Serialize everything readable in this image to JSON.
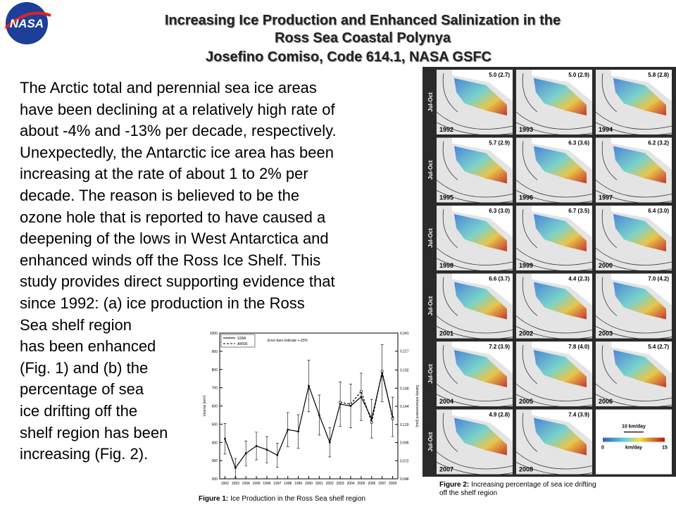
{
  "logo": "NASA",
  "header": {
    "title_lines": [
      "Increasing Ice Production and Enhanced Salinization in the",
      "Ross Sea Coastal Polynya"
    ],
    "author": "Josefino Comiso, Code 614.1, NASA GSFC"
  },
  "body_lines": [
    "The Arctic total and perennial sea ice  areas",
    "have been declining at a relatively high rate of",
    "about -4% and -13% per decade, respectively.",
    "Unexpectedly, the Antarctic ice area has been",
    "increasing at the rate of about 1 to 2% per",
    "decade.  The reason is believed to be the",
    "ozone hole that is reported to have caused a",
    "deepening of the lows in West Antarctica and",
    "enhanced winds off the Ross Ice Shelf.  This",
    "study provides direct supporting evidence that",
    "since 1992: (a) ice production in the Ross",
    "Sea shelf region",
    "has been enhanced",
    "(Fig. 1) and (b) the",
    "percentage of sea",
    "ice drifting off the",
    "shelf region has been",
    "increasing (Fig. 2)."
  ],
  "chart_data": {
    "type": "line",
    "annotation": "Error bars indicate +-20%",
    "y_label": "Volume (km³)",
    "y2_label": "Salinity enhancement (psu)",
    "x": [
      1992,
      1993,
      1994,
      1995,
      1996,
      1997,
      1998,
      1999,
      2000,
      2001,
      2002,
      2003,
      2004,
      2005,
      2006,
      2007,
      2008
    ],
    "xlim": [
      1991.5,
      2008.5
    ],
    "xticks": [
      1992,
      1993,
      1994,
      1995,
      1996,
      1997,
      1998,
      1999,
      2000,
      2001,
      2002,
      2003,
      2004,
      2005,
      2006,
      2007,
      2008
    ],
    "ylim": [
      200,
      1000
    ],
    "yticks": [
      200,
      300,
      400,
      500,
      600,
      700,
      800,
      900,
      1000
    ],
    "y2lim": [
      0.048,
      0.241
    ],
    "y2ticks": [
      0.048,
      0.072,
      0.096,
      {
        "value": 0.12,
        "label": "0.120"
      },
      0.144,
      0.168,
      0.192,
      0.217,
      0.241
    ],
    "series": [
      {
        "name": "SSMI",
        "color": "#000000",
        "dash": false,
        "values": [
          420,
          260,
          340,
          380,
          360,
          330,
          470,
          460,
          710,
          550,
          400,
          610,
          600,
          650,
          530,
          780,
          540
        ],
        "errors": [
          84,
          52,
          68,
          76,
          72,
          66,
          94,
          92,
          142,
          110,
          80,
          122,
          120,
          130,
          106,
          156,
          108
        ]
      },
      {
        "name": "AMSR",
        "color": "#000000",
        "dash": true,
        "values": [
          null,
          null,
          null,
          null,
          null,
          null,
          null,
          null,
          null,
          null,
          null,
          620,
          610,
          680,
          510,
          790,
          530
        ]
      }
    ],
    "caption_label": "Figure 1:",
    "caption": "Ice Production in the Ross Sea shelf region"
  },
  "figure2": {
    "row_label": "Jul-Oct",
    "panels": [
      {
        "year": "1992",
        "label": "5.0 (2.7)"
      },
      {
        "year": "1993",
        "label": "5.0 (2.9)"
      },
      {
        "year": "1994",
        "label": "5.8 (2.8)"
      },
      {
        "year": "1995",
        "label": "5.7 (2.9)"
      },
      {
        "year": "1996",
        "label": "6.3 (3.6)"
      },
      {
        "year": "1997",
        "label": "6.2 (3.2)"
      },
      {
        "year": "1998",
        "label": "6.3 (3.0)"
      },
      {
        "year": "1999",
        "label": "6.7 (3.5)"
      },
      {
        "year": "2000",
        "label": "6.4 (3.0)"
      },
      {
        "year": "2001",
        "label": "6.6 (3.7)"
      },
      {
        "year": "2002",
        "label": "4.4 (2.3)"
      },
      {
        "year": "2003",
        "label": "7.0 (4.2)"
      },
      {
        "year": "2004",
        "label": "7.2 (3.9)"
      },
      {
        "year": "2005",
        "label": "7.8 (4.0)"
      },
      {
        "year": "2006",
        "label": "5.4 (2.7)"
      },
      {
        "year": "2007",
        "label": "4.9 (2.8)"
      },
      {
        "year": "2008",
        "label": "7.4 (3.9)"
      }
    ],
    "scale_label": "10 km/day",
    "colorbar": {
      "min": "0",
      "unit": "km/day",
      "max": "15"
    },
    "caption_label": "Figure 2:",
    "caption": "Increasing percentage of sea ice drifting off the shelf region"
  }
}
